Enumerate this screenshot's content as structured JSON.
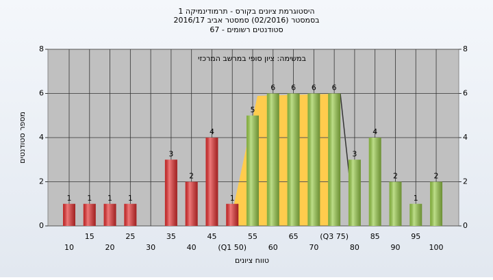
{
  "chart_data": {
    "type": "bar",
    "title": "היסטוגרמת ציונים בקורס - תרמודינמיקה 1",
    "subtitle": "בסמסטר  (02/2016)  סמסטר אביב 2016/17",
    "subtitle2": "סטודנטים רשומים - 67",
    "annotation": "במשימה: ציון סופי במרשב המרכזי",
    "xlabel": "טווח ציונים",
    "ylabel": "מספר סטודנטים",
    "categories": [
      "10",
      "15",
      "20",
      "25",
      "30",
      "35",
      "40",
      "45",
      "(Q1 50)",
      "55",
      "60",
      "65",
      "70",
      "(Q3 75)",
      "80",
      "85",
      "90",
      "95",
      "100"
    ],
    "values": [
      1,
      1,
      1,
      1,
      0,
      3,
      2,
      4,
      1,
      5,
      6,
      6,
      6,
      6,
      3,
      4,
      2,
      1,
      2
    ],
    "colors": [
      "#e53030",
      "#e53030",
      "#e53030",
      "#e53030",
      "#e53030",
      "#e53030",
      "#e53030",
      "#e53030",
      "#e53030",
      "#9acd4a",
      "#9acd4a",
      "#9acd4a",
      "#9acd4a",
      "#9acd4a",
      "#9acd4a",
      "#9acd4a",
      "#9acd4a",
      "#9acd4a",
      "#9acd4a"
    ],
    "ylim": [
      0,
      8
    ],
    "yticks": [
      0,
      2,
      4,
      6,
      8
    ],
    "y2lim": [
      0,
      8
    ],
    "y2ticks": [
      0,
      2,
      4,
      6,
      8
    ],
    "grid": true
  }
}
